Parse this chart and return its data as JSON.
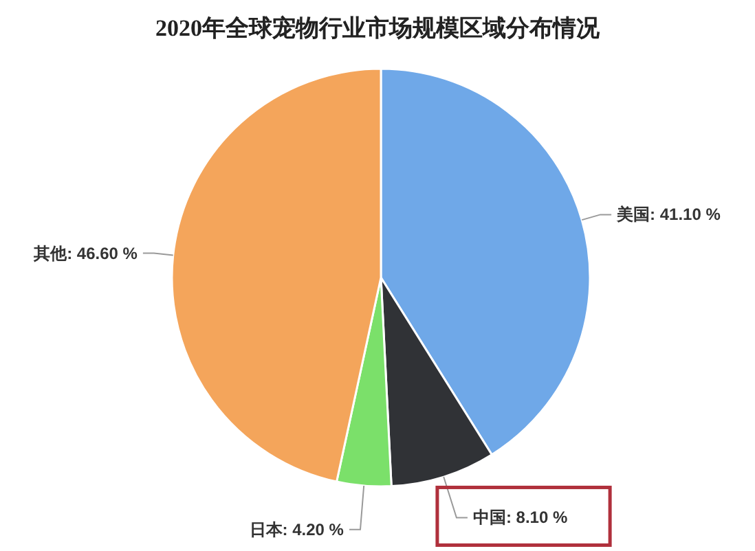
{
  "chart_data": {
    "type": "pie",
    "title": "2020年全球宠物行业市场规模区域分布情况",
    "categories": [
      "美国",
      "中国",
      "日本",
      "其他"
    ],
    "values": [
      41.1,
      8.1,
      4.2,
      46.6
    ],
    "value_labels": [
      "41.10 %",
      "8.10 %",
      "4.20 %",
      "46.60 %"
    ],
    "colors": [
      "#6fa8e8",
      "#303236",
      "#7be06a",
      "#f4a55b"
    ],
    "legend": false
  }
}
